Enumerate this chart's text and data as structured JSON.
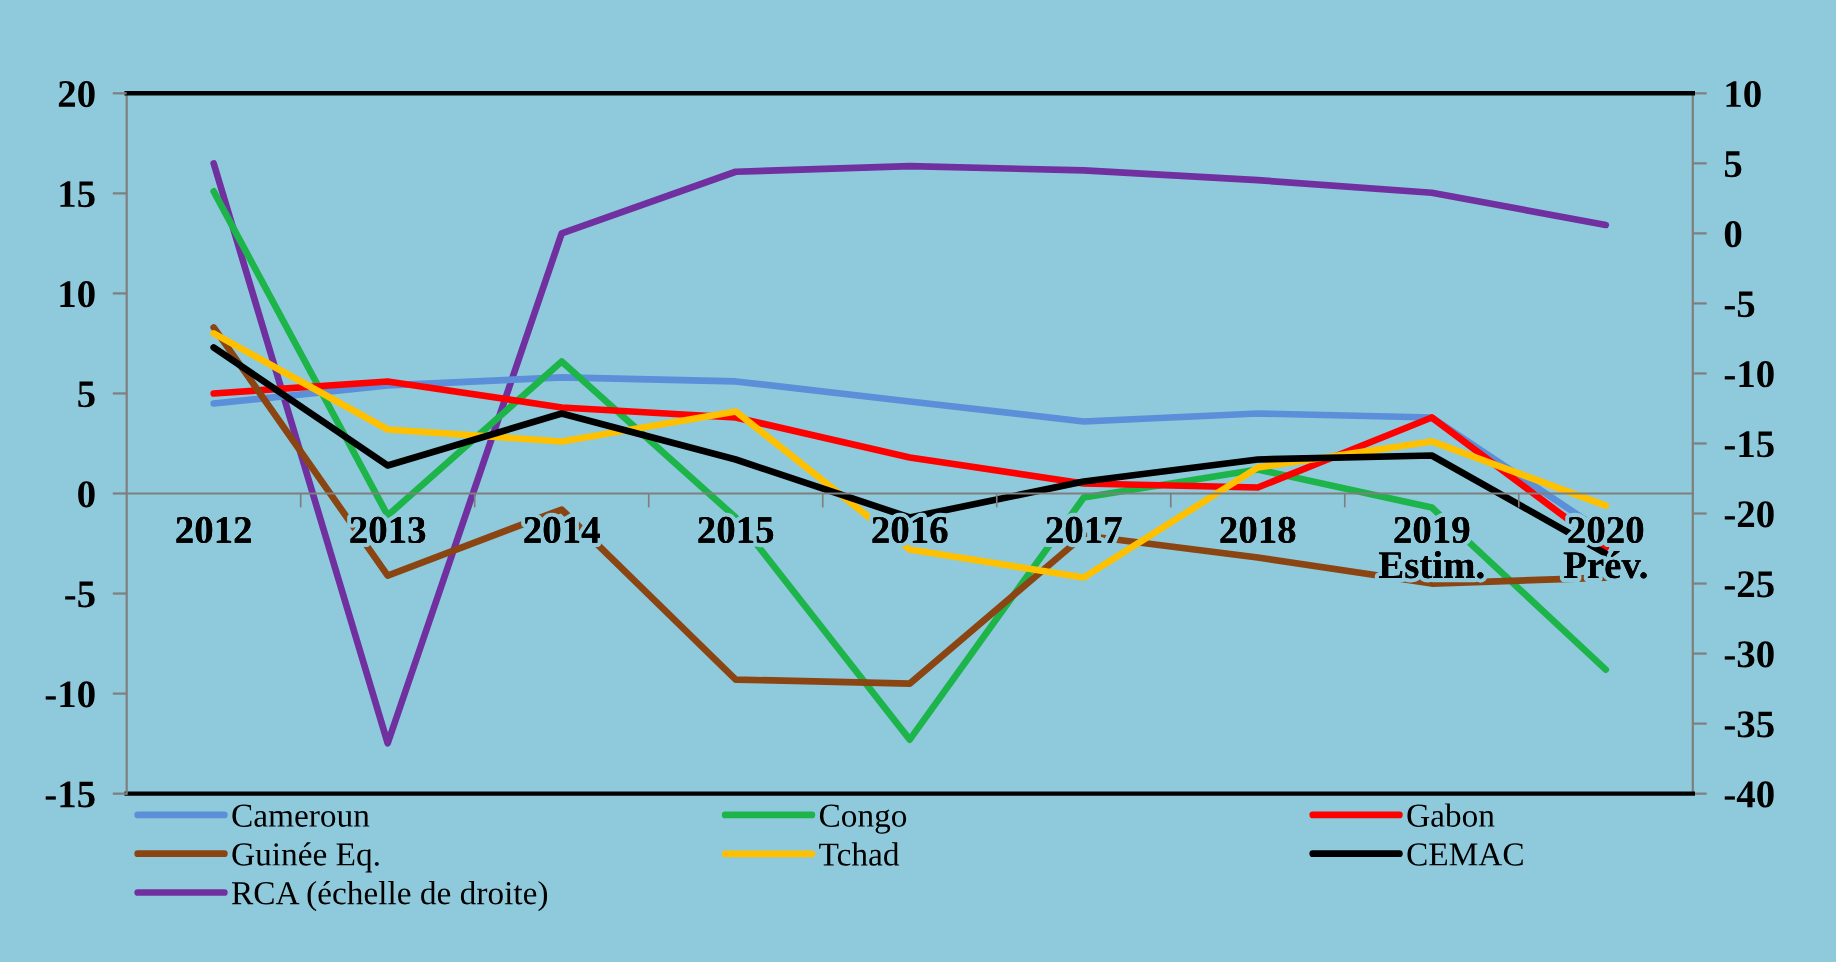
{
  "chart_data": {
    "type": "line",
    "categories": [
      "2012",
      "2013",
      "2014",
      "2015",
      "2016",
      "2017",
      "2018",
      "2019\nEstim.",
      "2020\nPrév."
    ],
    "series": [
      {
        "name": "Cameroun",
        "color": "#5b8fd9",
        "values": [
          4.5,
          5.4,
          5.8,
          5.6,
          4.6,
          3.6,
          4.0,
          3.8,
          -2.0
        ]
      },
      {
        "name": "Congo",
        "color": "#1db54a",
        "values": [
          15.1,
          -1.1,
          6.6,
          -1.2,
          -12.3,
          -0.2,
          1.2,
          -0.7,
          -8.8
        ]
      },
      {
        "name": "Gabon",
        "color": "#ff0000",
        "values": [
          5.0,
          5.6,
          4.3,
          3.8,
          1.8,
          0.5,
          0.3,
          3.8,
          -2.7
        ]
      },
      {
        "name": "Guinée Eq.",
        "color": "#8b4513",
        "values": [
          8.3,
          -4.1,
          -0.8,
          -9.3,
          -9.5,
          -2.1,
          -3.2,
          -4.5,
          -4.2
        ]
      },
      {
        "name": "Tchad",
        "color": "#ffc000",
        "values": [
          8.0,
          3.2,
          2.6,
          4.1,
          -2.8,
          -4.2,
          1.3,
          2.6,
          -0.6
        ]
      },
      {
        "name": "CEMAC",
        "color": "#000000",
        "values": [
          7.3,
          1.4,
          4.0,
          1.7,
          -1.2,
          0.6,
          1.7,
          1.9,
          -3.0
        ]
      },
      {
        "name": "RCA (échelle de droite)",
        "color": "#7030a0",
        "axis": "y2",
        "values": [
          5.0,
          -36.4,
          0.0,
          4.4,
          4.8,
          4.5,
          3.8,
          2.9,
          0.6
        ]
      }
    ],
    "ylim": [
      -15,
      20
    ],
    "yticks": [
      -15,
      -10,
      -5,
      0,
      5,
      10,
      15,
      20
    ],
    "y2lim": [
      -40,
      10
    ],
    "y2ticks": [
      -40,
      -35,
      -30,
      -25,
      -20,
      -15,
      -10,
      -5,
      0,
      5,
      10
    ],
    "legend": "bottom"
  }
}
